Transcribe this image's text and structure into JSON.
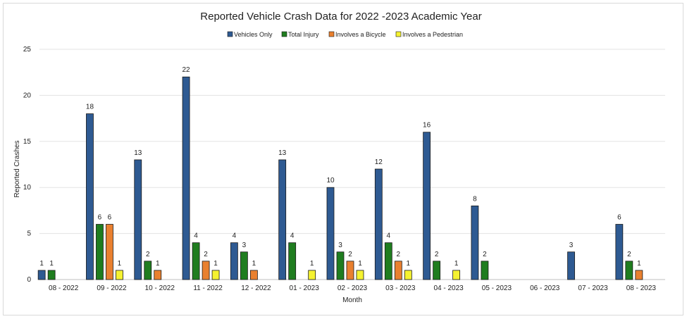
{
  "chart_data": {
    "type": "bar",
    "title": "Reported Vehicle Crash Data for 2022   -2023 Academic Year",
    "xlabel": "Month",
    "ylabel": "Reported Crashes",
    "ylim": [
      0,
      25
    ],
    "yticks": [
      0,
      5,
      10,
      15,
      20,
      25
    ],
    "grid": true,
    "legend_position": "top-center",
    "categories": [
      "08 - 2022",
      "09 - 2022",
      "10 - 2022",
      "11 - 2022",
      "12 - 2022",
      "01 - 2023",
      "02 - 2023",
      "03 - 2023",
      "04 - 2023",
      "05 - 2023",
      "06 - 2023",
      "07 - 2023",
      "08 - 2023"
    ],
    "series": [
      {
        "name": "Vehicles Only",
        "color": "#2e5a92",
        "values": [
          1,
          18,
          13,
          22,
          4,
          13,
          10,
          12,
          16,
          8,
          null,
          3,
          6
        ]
      },
      {
        "name": "Total Injury",
        "color": "#1f7d1f",
        "values": [
          1,
          6,
          2,
          4,
          3,
          4,
          3,
          4,
          2,
          2,
          null,
          null,
          2
        ]
      },
      {
        "name": "Involves a Bicycle",
        "color": "#e9802f",
        "values": [
          null,
          6,
          1,
          2,
          1,
          null,
          2,
          2,
          null,
          null,
          null,
          null,
          1
        ]
      },
      {
        "name": "Involves a Pedestrian",
        "color": "#f5f230",
        "values": [
          null,
          1,
          null,
          1,
          null,
          1,
          1,
          1,
          1,
          null,
          null,
          null,
          null
        ]
      }
    ]
  }
}
